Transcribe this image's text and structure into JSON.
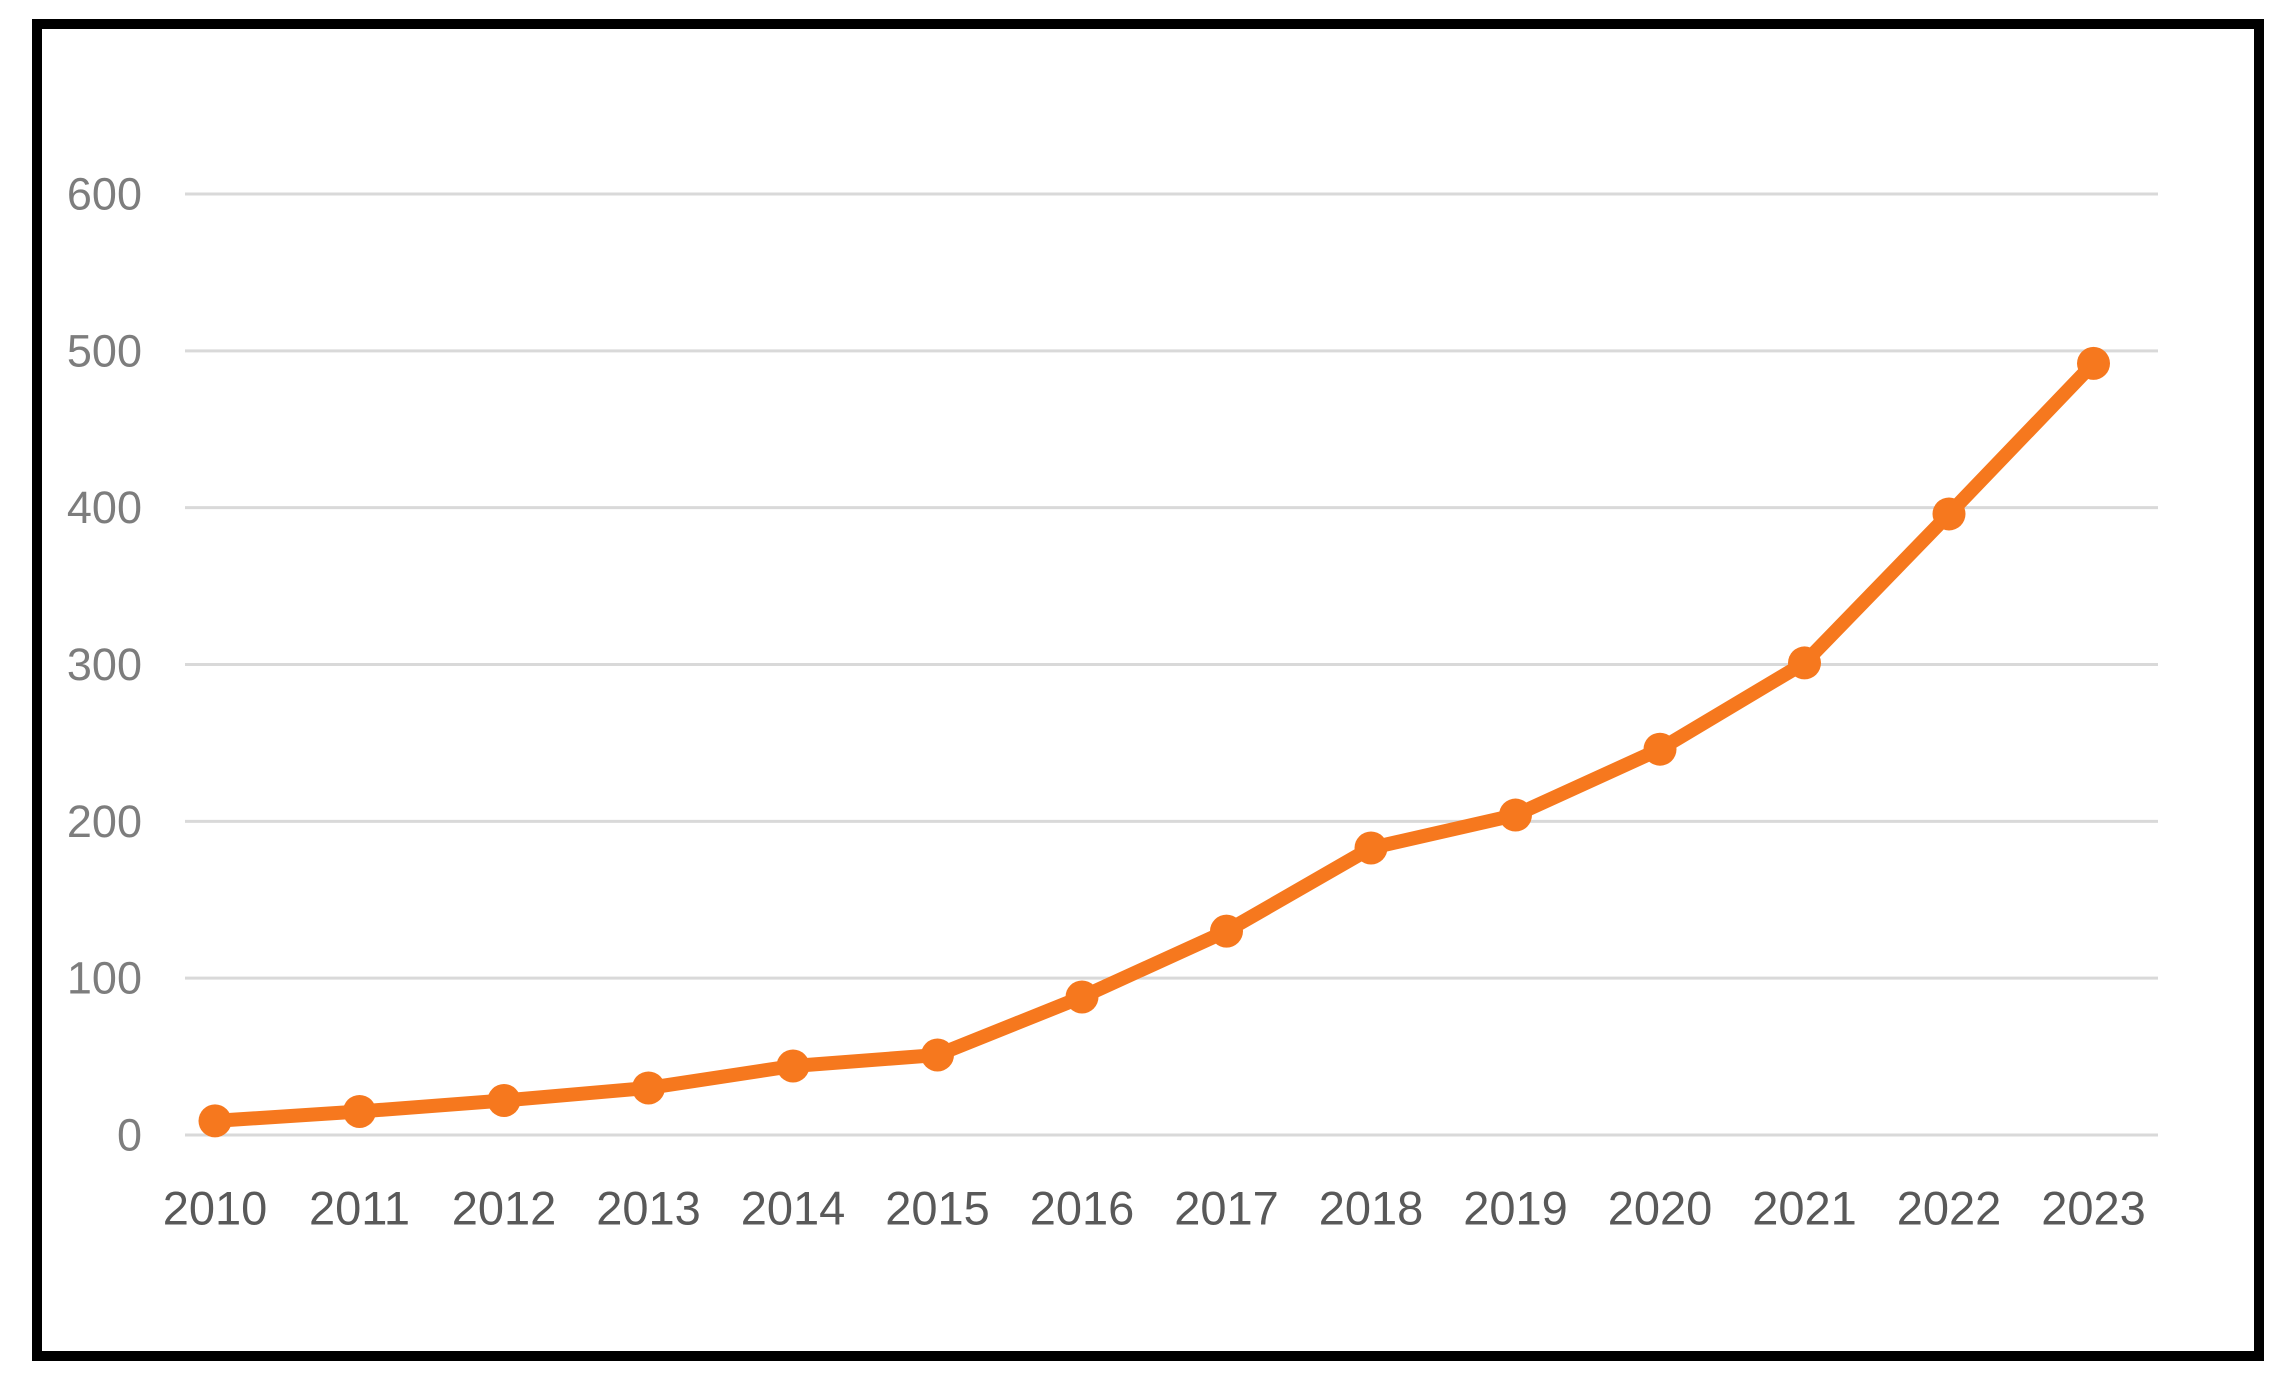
{
  "colors": {
    "background": "#ffffff",
    "frame": "#000000",
    "gridline": "#d9d9d9",
    "line": "#f6781e",
    "marker": "#f6781e",
    "y_tick_label": "#7d7d7d",
    "x_tick_label": "#595959"
  },
  "chart_data": {
    "type": "line",
    "title": "",
    "xlabel": "",
    "ylabel": "",
    "categories": [
      "2010",
      "2011",
      "2012",
      "2013",
      "2014",
      "2015",
      "2016",
      "2017",
      "2018",
      "2019",
      "2020",
      "2021",
      "2022",
      "2023"
    ],
    "series": [
      {
        "name": "",
        "values": [
          9,
          15,
          22,
          30,
          44,
          51,
          88,
          130,
          183,
          204,
          246,
          301,
          396,
          492
        ]
      }
    ],
    "ylim": [
      0,
      600
    ],
    "y_ticks": [
      0,
      100,
      200,
      300,
      400,
      500,
      600
    ],
    "grid": "horizontal",
    "legend": "none",
    "marker": "circle"
  }
}
